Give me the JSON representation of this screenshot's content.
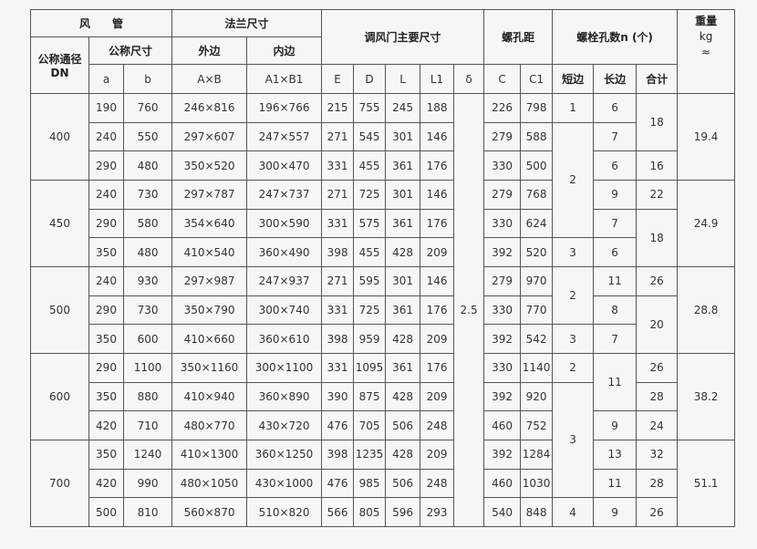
{
  "headers": {
    "duct": "风　　管",
    "dn": "公称通径 DN",
    "nominal": "公称尺寸",
    "a": "a",
    "b": "b",
    "flange": "法兰尺寸",
    "outer": "外边",
    "inner": "内边",
    "axb": "A×B",
    "a1xb1": "A1×B1",
    "damper": "调风门主要尺寸",
    "E": "E",
    "D": "D",
    "L": "L",
    "L1": "L1",
    "delta": "δ",
    "pitch": "螺孔距",
    "C": "C",
    "C1": "C1",
    "bolts": "螺栓孔数n (个)",
    "short": "短边",
    "long": "长边",
    "total": "合计",
    "weight": "重量",
    "weight_unit": "kg",
    "weight_approx": "≈"
  },
  "dn_groups": [
    {
      "value": "400",
      "span": 3
    },
    {
      "value": "450",
      "span": 3
    },
    {
      "value": "500",
      "span": 3
    },
    {
      "value": "600",
      "span": 3
    },
    {
      "value": "700",
      "span": 3
    }
  ],
  "rows": [
    [
      "190",
      "760",
      "246×816",
      "196×766",
      "215",
      "755",
      "245",
      "188",
      "226",
      "798"
    ],
    [
      "240",
      "550",
      "297×607",
      "247×557",
      "271",
      "545",
      "301",
      "146",
      "279",
      "588"
    ],
    [
      "290",
      "480",
      "350×520",
      "300×470",
      "331",
      "455",
      "361",
      "176",
      "330",
      "500"
    ],
    [
      "240",
      "730",
      "297×787",
      "247×737",
      "271",
      "725",
      "301",
      "146",
      "279",
      "768"
    ],
    [
      "290",
      "580",
      "354×640",
      "300×590",
      "331",
      "575",
      "361",
      "176",
      "330",
      "624"
    ],
    [
      "350",
      "480",
      "410×540",
      "360×490",
      "398",
      "455",
      "428",
      "209",
      "392",
      "520"
    ],
    [
      "240",
      "930",
      "297×987",
      "247×937",
      "271",
      "595",
      "301",
      "146",
      "279",
      "970"
    ],
    [
      "290",
      "730",
      "350×790",
      "300×740",
      "331",
      "725",
      "361",
      "176",
      "330",
      "770"
    ],
    [
      "350",
      "600",
      "410×660",
      "360×610",
      "398",
      "959",
      "428",
      "209",
      "392",
      "542"
    ],
    [
      "290",
      "1100",
      "350×1160",
      "300×1100",
      "331",
      "1095",
      "361",
      "176",
      "330",
      "1140"
    ],
    [
      "350",
      "880",
      "410×940",
      "360×890",
      "390",
      "875",
      "428",
      "209",
      "392",
      "920"
    ],
    [
      "420",
      "710",
      "480×770",
      "430×720",
      "476",
      "705",
      "506",
      "248",
      "460",
      "752"
    ],
    [
      "350",
      "1240",
      "410×1300",
      "360×1250",
      "398",
      "1235",
      "428",
      "209",
      "392",
      "1284"
    ],
    [
      "420",
      "990",
      "480×1050",
      "430×1000",
      "476",
      "985",
      "506",
      "248",
      "460",
      "1030"
    ],
    [
      "500",
      "810",
      "560×870",
      "510×820",
      "566",
      "805",
      "596",
      "293",
      "540",
      "848"
    ]
  ],
  "delta": "2.5",
  "short_side": [
    {
      "value": "1",
      "span": 1
    },
    {
      "value": "2",
      "span": 4
    },
    {
      "value": "3",
      "span": 1
    },
    {
      "value": "2",
      "span": 2
    },
    {
      "value": "3",
      "span": 1
    },
    {
      "value": "2",
      "span": 1
    },
    {
      "value": "3",
      "span": 4
    },
    {
      "value": "4",
      "span": 1
    }
  ],
  "long_side": [
    {
      "value": "6",
      "span": 1
    },
    {
      "value": "7",
      "span": 1
    },
    {
      "value": "6",
      "span": 1
    },
    {
      "value": "9",
      "span": 1
    },
    {
      "value": "7",
      "span": 1
    },
    {
      "value": "6",
      "span": 1
    },
    {
      "value": "11",
      "span": 1
    },
    {
      "value": "8",
      "span": 1
    },
    {
      "value": "7",
      "span": 1
    },
    {
      "value": "11",
      "span": 2
    },
    {
      "value": "9",
      "span": 1
    },
    {
      "value": "13",
      "span": 1
    },
    {
      "value": "11",
      "span": 1
    },
    {
      "value": "9",
      "span": 1
    }
  ],
  "total": [
    {
      "value": "18",
      "span": 2
    },
    {
      "value": "16",
      "span": 1
    },
    {
      "value": "22",
      "span": 1
    },
    {
      "value": "18",
      "span": 2
    },
    {
      "value": "26",
      "span": 1
    },
    {
      "value": "20",
      "span": 2
    },
    {
      "value": "26",
      "span": 1
    },
    {
      "value": "28",
      "span": 1
    },
    {
      "value": "24",
      "span": 1
    },
    {
      "value": "32",
      "span": 1
    },
    {
      "value": "28",
      "span": 1
    },
    {
      "value": "26",
      "span": 1
    }
  ],
  "weights": [
    {
      "value": "19.4",
      "span": 3
    },
    {
      "value": "24.9",
      "span": 3
    },
    {
      "value": "28.8",
      "span": 3
    },
    {
      "value": "38.2",
      "span": 3
    },
    {
      "value": "51.1",
      "span": 3
    }
  ]
}
